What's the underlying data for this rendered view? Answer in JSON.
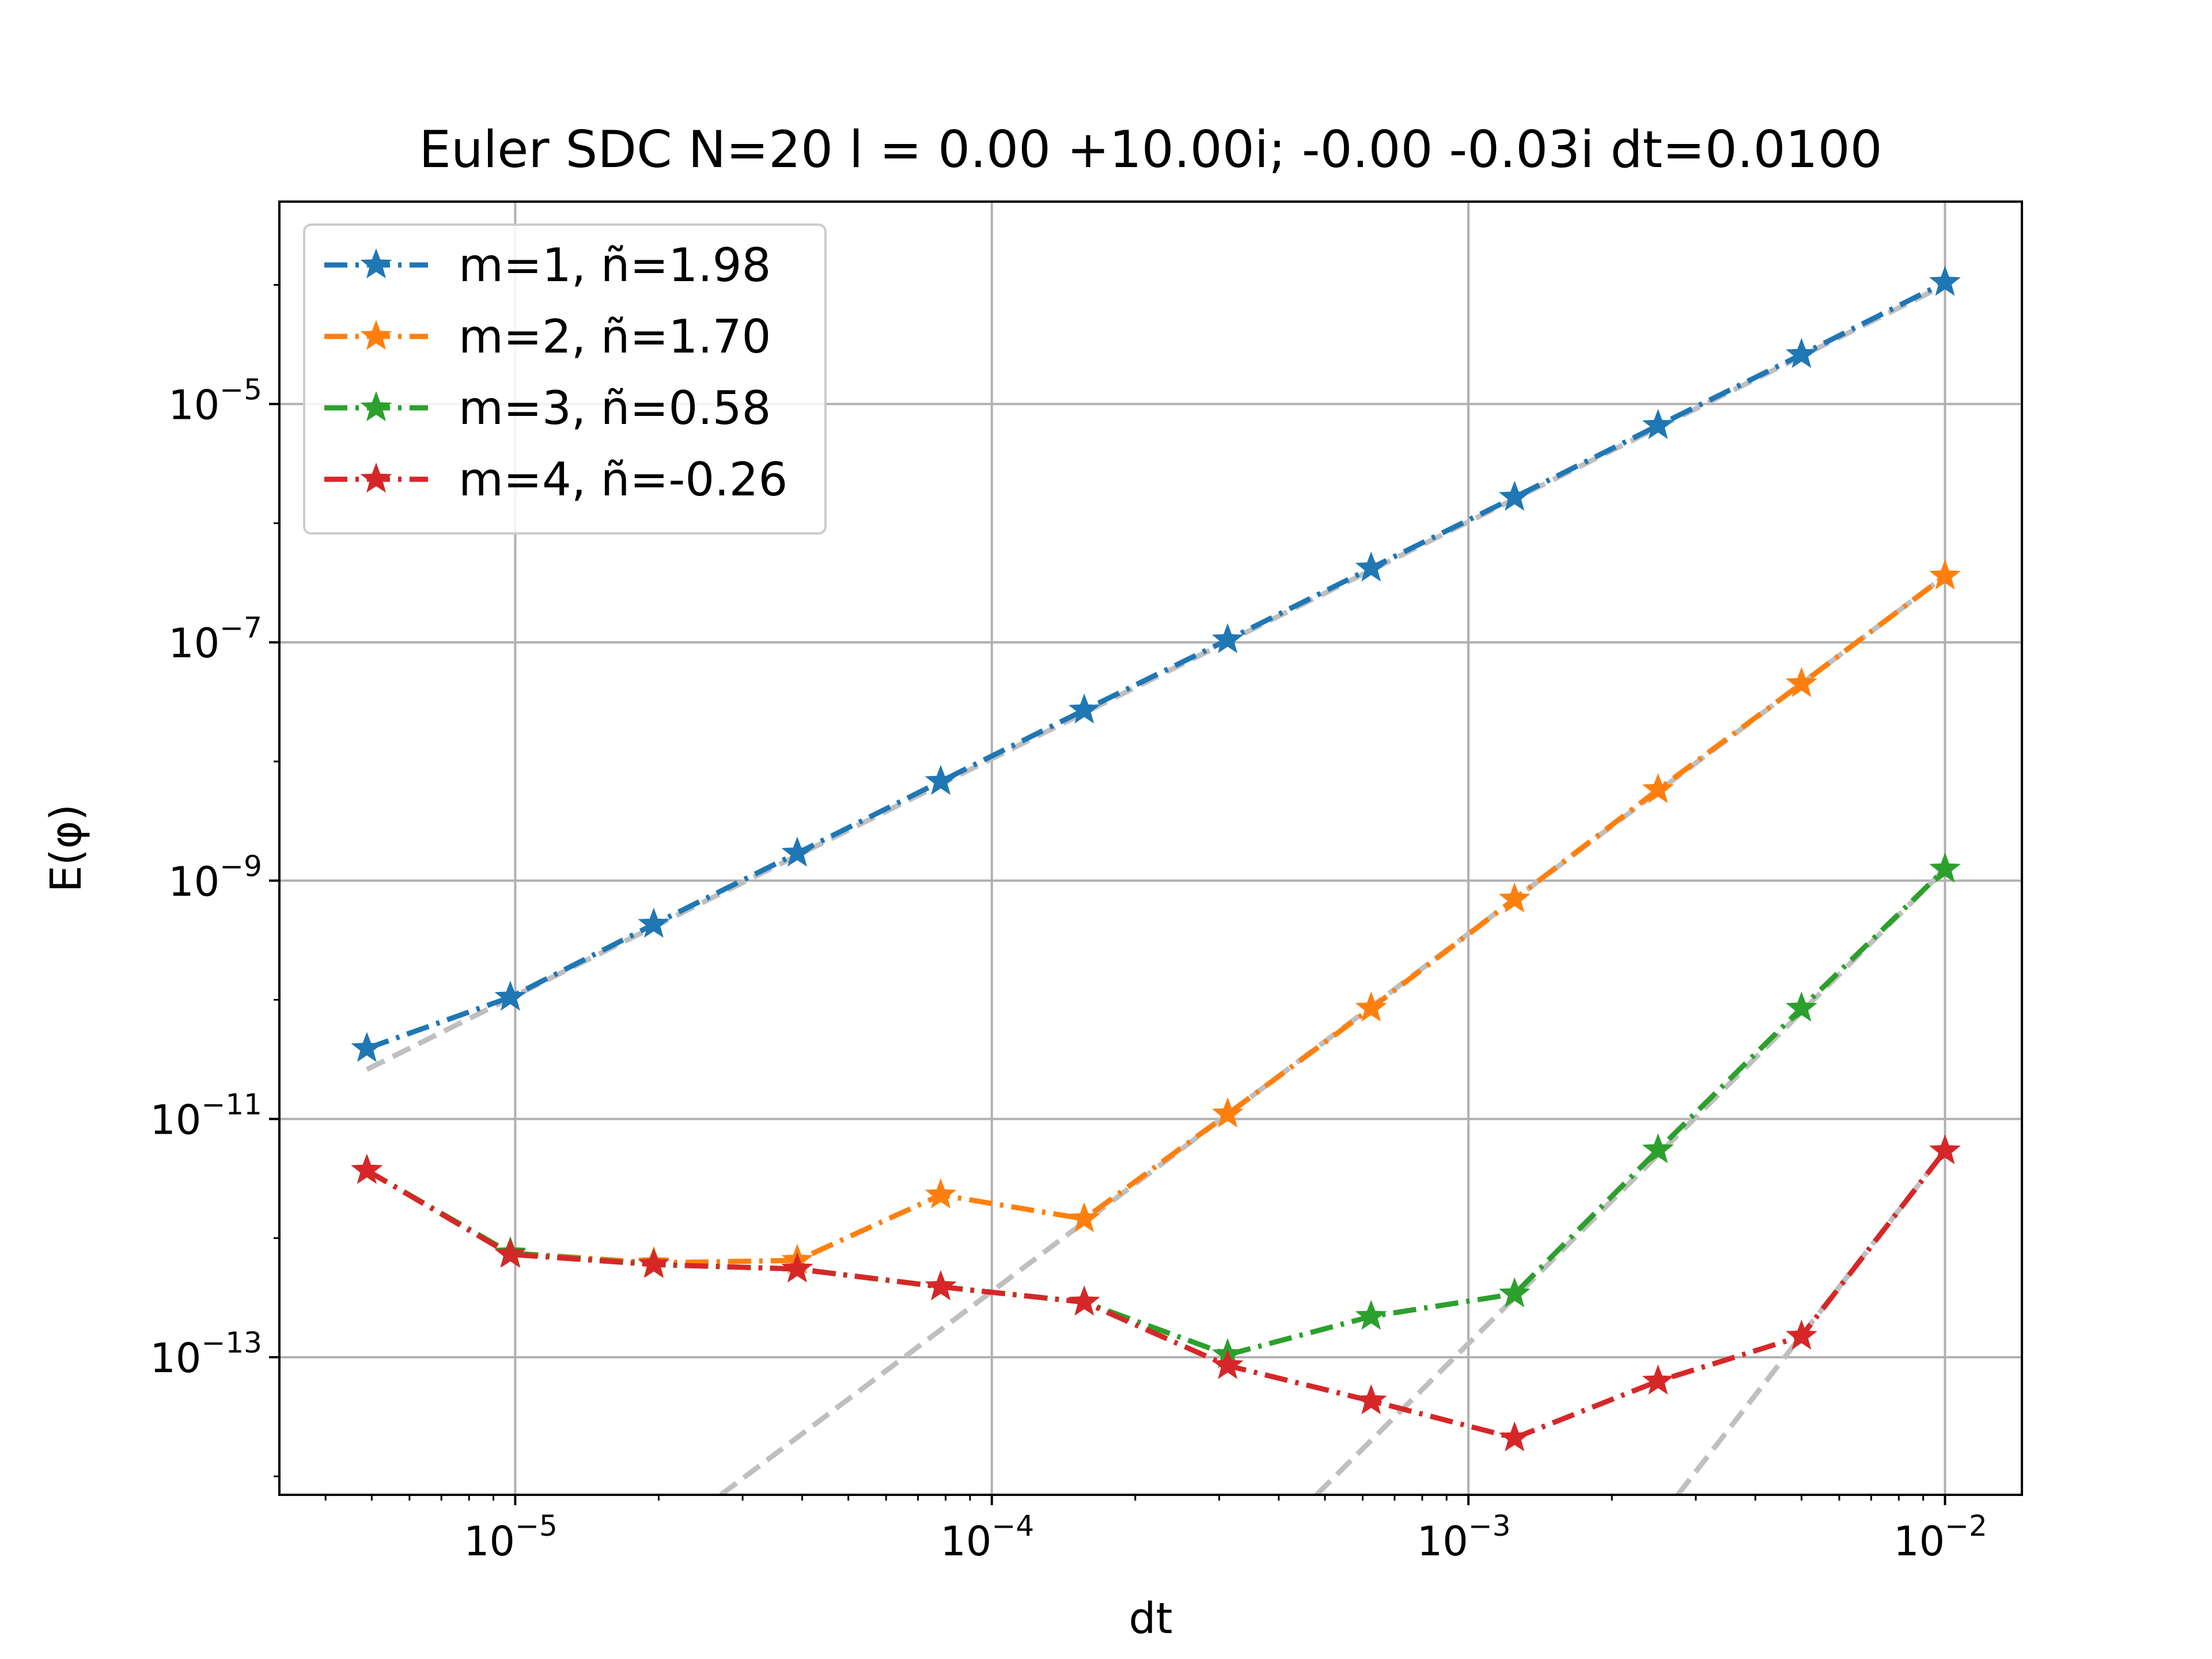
{
  "chart_data": {
    "type": "line",
    "title": "Euler SDC N=20 l = 0.00 +10.00i; -0.00 -0.03i dt=0.0100",
    "xlabel": "dt",
    "ylabel": "E(φ)",
    "xscale": "log",
    "yscale": "log",
    "xlim": [
      3.2e-06,
      0.0145
    ],
    "ylim": [
      7e-15,
      0.0005
    ],
    "grid": true,
    "legend_position": "top-left",
    "x_ticks": [
      {
        "base": "10",
        "exp": "−5",
        "value": 1e-05
      },
      {
        "base": "10",
        "exp": "−4",
        "value": 0.0001
      },
      {
        "base": "10",
        "exp": "−3",
        "value": 0.001
      },
      {
        "base": "10",
        "exp": "−2",
        "value": 0.01
      }
    ],
    "y_ticks": [
      {
        "base": "10",
        "exp": "−5",
        "value": 1e-05
      },
      {
        "base": "10",
        "exp": "−7",
        "value": 1e-07
      },
      {
        "base": "10",
        "exp": "−9",
        "value": 1e-09
      },
      {
        "base": "10",
        "exp": "−11",
        "value": 1e-11
      },
      {
        "base": "10",
        "exp": "−13",
        "value": 1e-13
      }
    ],
    "x": [
      4.883e-06,
      9.766e-06,
      1.953e-05,
      3.906e-05,
      7.813e-05,
      0.0001563,
      0.0003125,
      0.000625,
      0.00125,
      0.0025,
      0.005,
      0.01
    ],
    "series": [
      {
        "name": "m=1, ñ=1.98",
        "color": "#1f77b4",
        "values": [
          3.9e-11,
          1.05e-10,
          4.3e-10,
          1.7e-09,
          6.8e-09,
          2.7e-08,
          1.05e-07,
          4.2e-07,
          1.65e-06,
          6.6e-06,
          2.6e-05,
          0.000105
        ]
      },
      {
        "name": "m=2, ñ=1.70",
        "color": "#ff7f0e",
        "values": [
          3.7e-12,
          7.5e-13,
          6.2e-13,
          6.5e-13,
          2.3e-12,
          1.45e-12,
          1.1e-11,
          8.5e-11,
          7e-10,
          5.8e-09,
          4.5e-08,
          3.6e-07
        ]
      },
      {
        "name": "m=3, ñ=0.58",
        "color": "#2ca02c",
        "values": [
          3.7e-12,
          7.5e-13,
          6e-13,
          5.5e-13,
          3.9e-13,
          2.9e-13,
          1.05e-13,
          2.2e-13,
          3.4e-13,
          5.5e-12,
          8.5e-11,
          1.25e-09
        ]
      },
      {
        "name": "m=4, ñ=-0.26",
        "color": "#d62728",
        "values": [
          3.7e-12,
          7.3e-13,
          6e-13,
          5.5e-13,
          3.9e-13,
          2.9e-13,
          8.5e-14,
          4.3e-14,
          2.1e-14,
          6.3e-14,
          1.5e-13,
          5.4e-12
        ]
      }
    ],
    "reference_lines": [
      {
        "name": "m=1 fit",
        "points": [
          [
            4.883e-06,
            2.6e-11
          ],
          [
            0.01,
            0.0001
          ]
        ]
      },
      {
        "name": "m=2 fit",
        "points": [
          [
            2.7e-05,
            7e-15
          ],
          [
            0.01,
            3.6e-07
          ]
        ]
      },
      {
        "name": "m=3 fit",
        "points": [
          [
            0.00048,
            7e-15
          ],
          [
            0.01,
            1.25e-09
          ]
        ]
      },
      {
        "name": "m=4 fit",
        "points": [
          [
            0.00275,
            7e-15
          ],
          [
            0.01,
            5.4e-12
          ]
        ]
      }
    ]
  }
}
